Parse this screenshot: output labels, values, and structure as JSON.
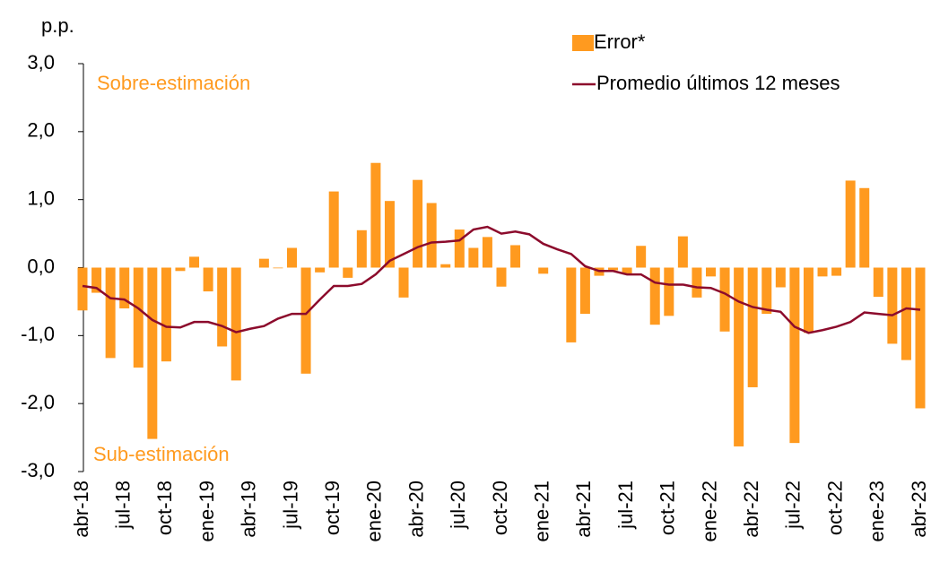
{
  "chart_data": {
    "type": "bar_line",
    "y_unit": "p.p.",
    "annotations": [
      "Sobre-estimación",
      "Sub-estimación"
    ],
    "categories": [
      "abr-18",
      null,
      null,
      "jul-18",
      null,
      null,
      "oct-18",
      null,
      null,
      "ene-19",
      null,
      null,
      "abr-19",
      null,
      null,
      "jul-19",
      null,
      null,
      "oct-19",
      null,
      null,
      "ene-20",
      null,
      null,
      "abr-20",
      null,
      null,
      "jul-20",
      null,
      null,
      "oct-20",
      null,
      null,
      "ene-21",
      null,
      null,
      "abr-21",
      null,
      null,
      "jul-21",
      null,
      null,
      "oct-21",
      null,
      null,
      "ene-22",
      null,
      null,
      "abr-22",
      null,
      null,
      "jul-22",
      null,
      null,
      "oct-22",
      null,
      null,
      "ene-23",
      null,
      null,
      "abr-23"
    ],
    "series": [
      {
        "name": "Error*",
        "type": "bar",
        "color": "#ff9a1f",
        "values": [
          -0.63,
          -0.37,
          -1.33,
          -0.6,
          -1.47,
          -2.52,
          -1.38,
          -0.05,
          0.16,
          -0.35,
          -1.16,
          -1.66,
          0.0,
          0.13,
          -0.01,
          0.29,
          -1.56,
          -0.07,
          1.12,
          -0.15,
          0.55,
          1.54,
          0.98,
          -0.44,
          1.29,
          0.95,
          0.05,
          0.56,
          0.29,
          0.45,
          -0.28,
          0.33,
          0.0,
          -0.09,
          0.0,
          -1.1,
          -0.68,
          -0.12,
          -0.04,
          -0.1,
          0.32,
          -0.84,
          -0.71,
          0.46,
          -0.44,
          -0.13,
          -0.94,
          -2.63,
          -1.76,
          -0.68,
          -0.29,
          -2.58,
          -0.96,
          -0.13,
          -0.12,
          1.28,
          1.17,
          -0.43,
          -1.12,
          -1.36,
          -2.07
        ]
      },
      {
        "name": "Promedio últimos 12 meses",
        "type": "line",
        "color": "#8c0b2c",
        "values": [
          -0.27,
          -0.3,
          -0.45,
          -0.47,
          -0.6,
          -0.77,
          -0.87,
          -0.88,
          -0.8,
          -0.8,
          -0.86,
          -0.95,
          -0.9,
          -0.86,
          -0.75,
          -0.68,
          -0.68,
          -0.47,
          -0.27,
          -0.27,
          -0.24,
          -0.1,
          0.1,
          0.2,
          0.3,
          0.37,
          0.38,
          0.4,
          0.56,
          0.6,
          0.5,
          0.53,
          0.49,
          0.35,
          0.27,
          0.2,
          0.02,
          -0.05,
          -0.05,
          -0.1,
          -0.1,
          -0.22,
          -0.25,
          -0.25,
          -0.29,
          -0.3,
          -0.38,
          -0.5,
          -0.58,
          -0.62,
          -0.65,
          -0.87,
          -0.96,
          -0.92,
          -0.87,
          -0.8,
          -0.66,
          -0.68,
          -0.7,
          -0.6,
          -0.62
        ]
      }
    ],
    "ylim": [
      -3,
      3
    ],
    "yticks": [
      {
        "value": -3,
        "label": "-3,0"
      },
      {
        "value": -2,
        "label": "-2,0"
      },
      {
        "value": -1,
        "label": "-1,0"
      },
      {
        "value": 0,
        "label": "0,0"
      },
      {
        "value": 1,
        "label": "1,0"
      },
      {
        "value": 2,
        "label": "2,0"
      },
      {
        "value": 3,
        "label": "3,0"
      }
    ],
    "grid": false,
    "legend": "top-right"
  }
}
